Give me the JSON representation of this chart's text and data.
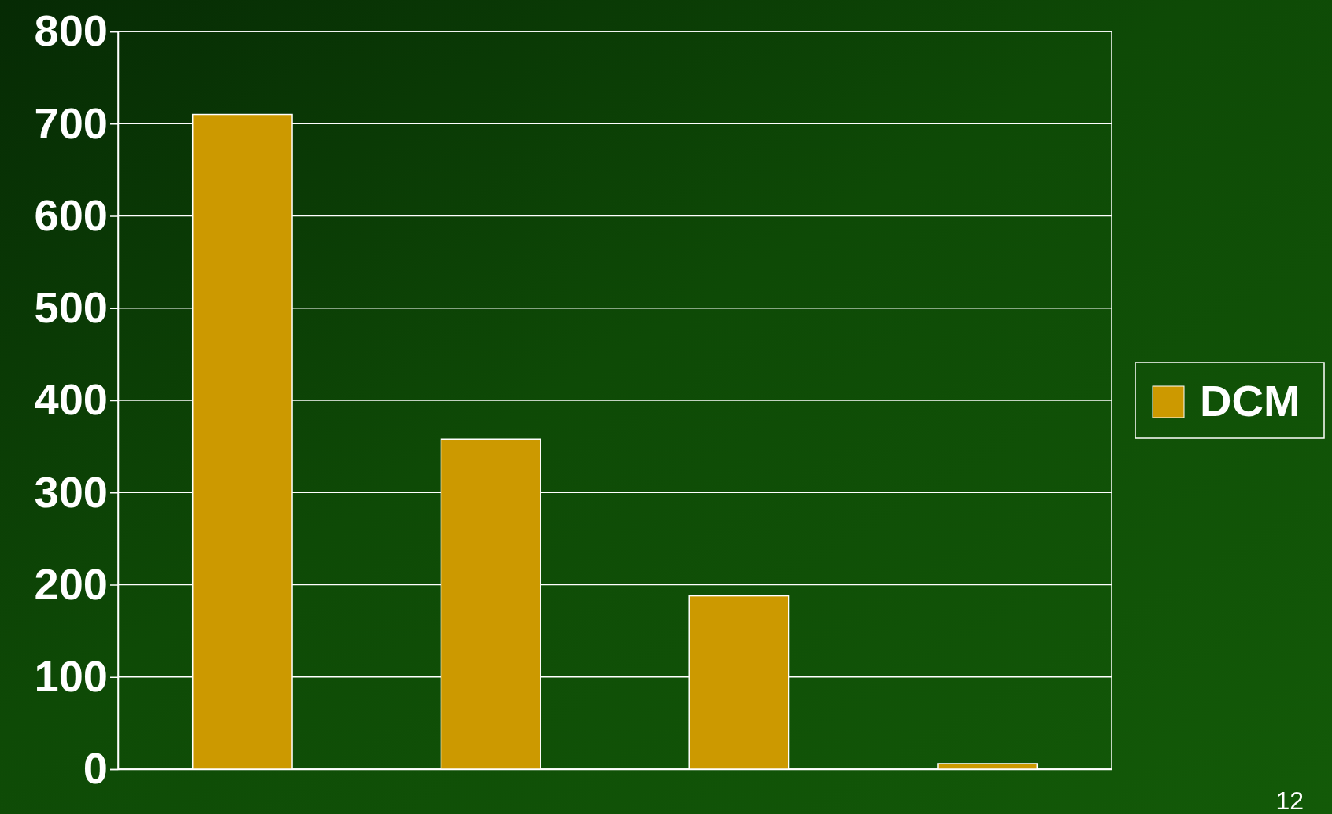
{
  "chart_data": {
    "type": "bar",
    "categories": [
      null,
      null,
      null,
      null
    ],
    "series": [
      {
        "name": "DCM",
        "color": "#cc9900",
        "values": [
          710,
          358,
          188,
          6
        ]
      }
    ],
    "ylim": [
      0,
      800
    ],
    "yticks": [
      0,
      100,
      200,
      300,
      400,
      500,
      600,
      700,
      800
    ],
    "grid": "y",
    "legend": "right",
    "annotations": [
      "12"
    ]
  }
}
